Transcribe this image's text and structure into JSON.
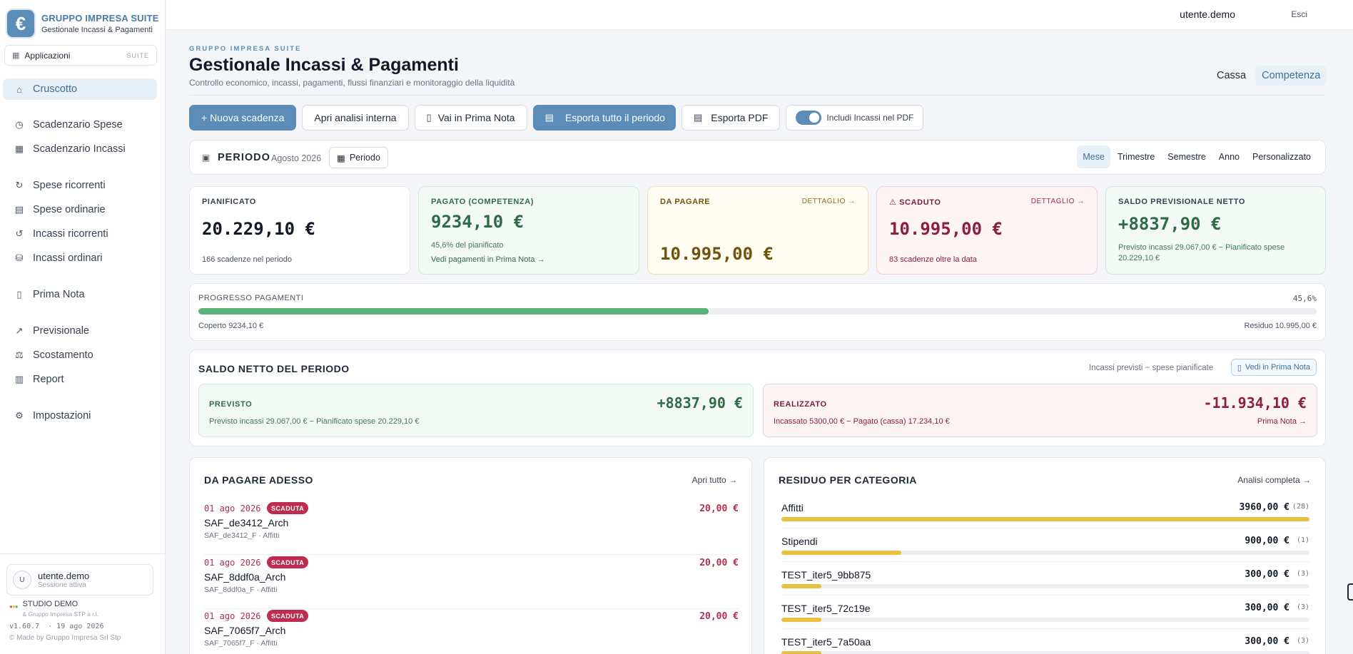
{
  "brand": {
    "symbol": "€",
    "title": "GRUPPO IMPRESA SUITE",
    "subtitle": "Gestionale Incassi & Pagamenti"
  },
  "apps": {
    "label": "Applicazioni",
    "tag": "SUITE"
  },
  "nav": [
    {
      "label": "Cruscotto",
      "icon": "home-icon",
      "glyph": "⌂"
    },
    {
      "label": "Scadenzario Spese",
      "icon": "calendar-clock-icon",
      "glyph": "◷"
    },
    {
      "label": "Scadenzario Incassi",
      "icon": "calendar-icon",
      "glyph": "▦"
    },
    {
      "label": "Spese ricorrenti",
      "icon": "refresh-icon",
      "glyph": "↻"
    },
    {
      "label": "Spese ordinarie",
      "icon": "document-icon",
      "glyph": "▤"
    },
    {
      "label": "Incassi ricorrenti",
      "icon": "rotate-icon",
      "glyph": "↺"
    },
    {
      "label": "Incassi ordinari",
      "icon": "coins-icon",
      "glyph": "⛁"
    },
    {
      "label": "Prima Nota",
      "icon": "book-icon",
      "glyph": "▯"
    },
    {
      "label": "Previsionale",
      "icon": "trend-icon",
      "glyph": "↗"
    },
    {
      "label": "Scostamento",
      "icon": "scale-icon",
      "glyph": "⚖"
    },
    {
      "label": "Report",
      "icon": "bar-chart-icon",
      "glyph": "▥"
    },
    {
      "label": "Impostazioni",
      "icon": "gear-icon",
      "glyph": "⚙"
    }
  ],
  "sidebar_footer": {
    "avatar": "U",
    "user": "utente.demo",
    "session": "Sessione attiva",
    "studio": "STUDIO DEMO",
    "studio_sub": "& Gruppo Impresa STP a r.l.",
    "version": "v1.60.7",
    "date": "19 ago 2026",
    "madeby": "© Made by Gruppo Impresa Srl Stp"
  },
  "topbar": {
    "user": "utente.demo",
    "exit": "Esci"
  },
  "header": {
    "eyebrow": "GRUPPO IMPRESA SUITE",
    "title": "Gestionale Incassi & Pagamenti",
    "description": "Controllo economico, incassi, pagamenti, flussi finanziari e monitoraggio della liquidità",
    "modes": [
      "Cassa",
      "Competenza"
    ]
  },
  "actions": {
    "new": "+ Nuova scadenza",
    "analysis": "Apri analisi interna",
    "prima_nota": "Vai in Prima Nota",
    "export_all": "Esporta tutto il periodo",
    "export_pdf": "Esporta PDF",
    "include": "Includi Incassi nel PDF"
  },
  "period": {
    "label": "PERIODO",
    "value": "Agosto 2026",
    "button": "Periodo",
    "ranges": [
      "Mese",
      "Trimestre",
      "Semestre",
      "Anno",
      "Personalizzato"
    ]
  },
  "kpis": {
    "planned": {
      "label": "PIANIFICATO",
      "value": "20.229,10 €",
      "sub": "166 scadenze nel periodo"
    },
    "paid": {
      "label": "PAGATO (COMPETENZA)",
      "value": "9234,10 €",
      "sub": "45,6% del pianificato",
      "link": "Vedi pagamenti in Prima Nota →"
    },
    "to_pay": {
      "label": "DA PAGARE",
      "detail": "DETTAGLIO →",
      "value": "10.995,00 €"
    },
    "overdue": {
      "label": "SCADUTO",
      "detail": "DETTAGLIO →",
      "value": "10.995,00 €",
      "sub": "83 scadenze oltre la data"
    },
    "net": {
      "label": "SALDO PREVISIONALE NETTO",
      "value": "+8837,90 €",
      "sub": "Previsto incassi 29.067,00 € − Pianificato spese 20.229,10 €"
    }
  },
  "progress": {
    "title": "PROGRESSO PAGAMENTI",
    "percent_label": "45,6%",
    "percent": 45.6,
    "covered": "Coperto 9234,10 €",
    "residual": "Residuo 10.995,00 €"
  },
  "saldo": {
    "title": "SALDO NETTO DEL PERIODO",
    "note": "Incassi previsti − spese pianificate",
    "link": "Vedi in Prima Nota",
    "expected": {
      "label": "PREVISTO",
      "value": "+8837,90 €",
      "detail": "Previsto incassi 29.067,00 € − Pianificato spese 20.229,10 €"
    },
    "realized": {
      "label": "REALIZZATO",
      "value": "-11.934,10 €",
      "detail": "Incassato 5300,00 € − Pagato (cassa) 17.234,10 €",
      "link": "Prima Nota →"
    }
  },
  "due_now": {
    "title": "DA PAGARE ADESSO",
    "link": "Apri tutto →",
    "items": [
      {
        "date": "01 ago 2026",
        "badge": "SCADUTA",
        "name": "SAF_de3412_Arch",
        "sub": "SAF_de3412_F · Affitti",
        "amount": "20,00 €"
      },
      {
        "date": "01 ago 2026",
        "badge": "SCADUTA",
        "name": "SAF_8ddf0a_Arch",
        "sub": "SAF_8ddf0a_F · Affitti",
        "amount": "20,00 €"
      },
      {
        "date": "01 ago 2026",
        "badge": "SCADUTA",
        "name": "SAF_7065f7_Arch",
        "sub": "SAF_7065f7_F · Affitti",
        "amount": "20,00 €"
      }
    ]
  },
  "categories": {
    "title": "RESIDUO PER CATEGORIA",
    "link": "Analisi completa →",
    "items": [
      {
        "name": "Affitti",
        "amount": "3960,00 €",
        "count": "(28)",
        "share": 1.0
      },
      {
        "name": "Stipendi",
        "amount": "900,00 €",
        "count": "(1)",
        "share": 0.2273
      },
      {
        "name": "TEST_iter5_9bb875",
        "amount": "300,00 €",
        "count": "(3)",
        "share": 0.0758
      },
      {
        "name": "TEST_iter5_72c19e",
        "amount": "300,00 €",
        "count": "(3)",
        "share": 0.0758
      },
      {
        "name": "TEST_iter5_7a50aa",
        "amount": "300,00 €",
        "count": "(3)",
        "share": 0.0758
      }
    ]
  },
  "colors": {
    "accent": "#5b8db8",
    "danger": "#be2c4f",
    "success": "#5bb27a",
    "warning": "#e7c13f"
  }
}
